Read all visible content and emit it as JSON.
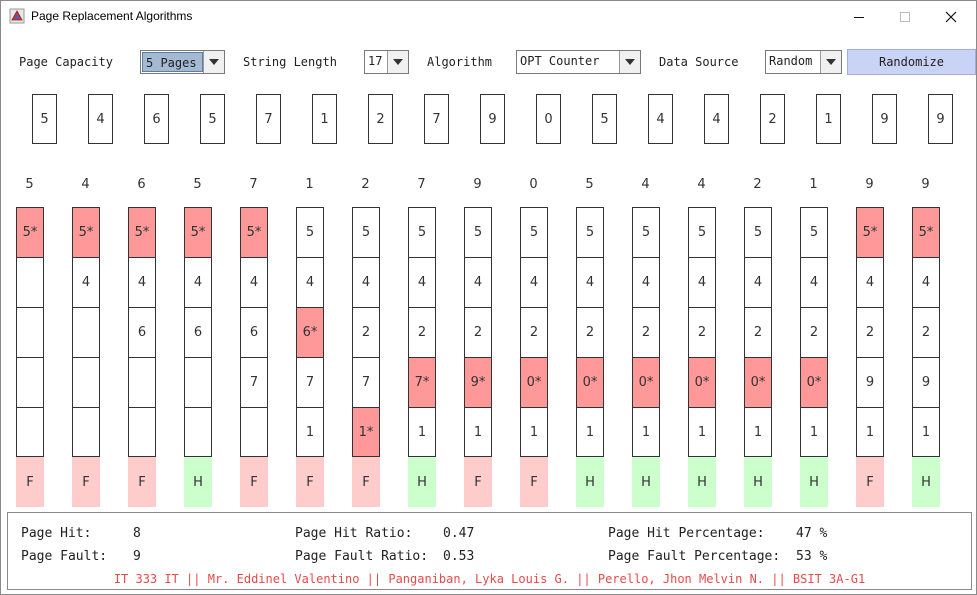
{
  "window": {
    "title": "Page Replacement Algorithms"
  },
  "colors": {
    "replaced": "#ff9999",
    "fault": "#ffcccc",
    "hit": "#ccffcc",
    "footer_text": "#e84a4a",
    "button": "#c9d3f5"
  },
  "controls": {
    "page_capacity": {
      "label": "Page Capacity",
      "value": "5 Pages"
    },
    "string_length": {
      "label": "String Length",
      "value": "17"
    },
    "algorithm": {
      "label": "Algorithm",
      "value": "OPT Counter"
    },
    "data_source": {
      "label": "Data Source",
      "value": "Random"
    },
    "randomize_label": "Randomize"
  },
  "reference_string": [
    "5",
    "4",
    "6",
    "5",
    "7",
    "1",
    "2",
    "7",
    "9",
    "0",
    "5",
    "4",
    "4",
    "2",
    "1",
    "9",
    "9"
  ],
  "columns": [
    {
      "head": "5",
      "frames": [
        "5*",
        "",
        "",
        "",
        ""
      ],
      "replaced": 0,
      "status": "F"
    },
    {
      "head": "4",
      "frames": [
        "5*",
        "4",
        "",
        "",
        ""
      ],
      "replaced": 0,
      "status": "F"
    },
    {
      "head": "6",
      "frames": [
        "5*",
        "4",
        "6",
        "",
        ""
      ],
      "replaced": 0,
      "status": "F"
    },
    {
      "head": "5",
      "frames": [
        "5*",
        "4",
        "6",
        "",
        ""
      ],
      "replaced": 0,
      "status": "H"
    },
    {
      "head": "7",
      "frames": [
        "5*",
        "4",
        "6",
        "7",
        ""
      ],
      "replaced": 0,
      "status": "F"
    },
    {
      "head": "1",
      "frames": [
        "5",
        "4",
        "6*",
        "7",
        "1"
      ],
      "replaced": 2,
      "status": "F"
    },
    {
      "head": "2",
      "frames": [
        "5",
        "4",
        "2",
        "7",
        "1*"
      ],
      "replaced": 4,
      "status": "F"
    },
    {
      "head": "7",
      "frames": [
        "5",
        "4",
        "2",
        "7*",
        "1"
      ],
      "replaced": 3,
      "status": "H"
    },
    {
      "head": "9",
      "frames": [
        "5",
        "4",
        "2",
        "9*",
        "1"
      ],
      "replaced": 3,
      "status": "F"
    },
    {
      "head": "0",
      "frames": [
        "5",
        "4",
        "2",
        "0*",
        "1"
      ],
      "replaced": 3,
      "status": "F"
    },
    {
      "head": "5",
      "frames": [
        "5",
        "4",
        "2",
        "0*",
        "1"
      ],
      "replaced": 3,
      "status": "H"
    },
    {
      "head": "4",
      "frames": [
        "5",
        "4",
        "2",
        "0*",
        "1"
      ],
      "replaced": 3,
      "status": "H"
    },
    {
      "head": "4",
      "frames": [
        "5",
        "4",
        "2",
        "0*",
        "1"
      ],
      "replaced": 3,
      "status": "H"
    },
    {
      "head": "2",
      "frames": [
        "5",
        "4",
        "2",
        "0*",
        "1"
      ],
      "replaced": 3,
      "status": "H"
    },
    {
      "head": "1",
      "frames": [
        "5",
        "4",
        "2",
        "0*",
        "1"
      ],
      "replaced": 3,
      "status": "H"
    },
    {
      "head": "9",
      "frames": [
        "5*",
        "4",
        "2",
        "9",
        "1"
      ],
      "replaced": 0,
      "status": "F"
    },
    {
      "head": "9",
      "frames": [
        "5*",
        "4",
        "2",
        "9",
        "1"
      ],
      "replaced": 0,
      "status": "H"
    }
  ],
  "stats": {
    "page_hit_label": "Page Hit:",
    "page_hit": "8",
    "page_fault_label": "Page Fault:",
    "page_fault": "9",
    "hit_ratio_label": "Page Hit Ratio:",
    "hit_ratio": "0.47",
    "fault_ratio_label": "Page Fault Ratio:",
    "fault_ratio": "0.53",
    "hit_pct_label": "Page Hit Percentage:",
    "hit_pct": "47 %",
    "fault_pct_label": "Page Fault Percentage:",
    "fault_pct": "53 %"
  },
  "footer": "IT 333 IT || Mr. Eddinel Valentino || Panganiban, Lyka Louis G. || Perello, Jhon Melvin N. || BSIT 3A-G1"
}
